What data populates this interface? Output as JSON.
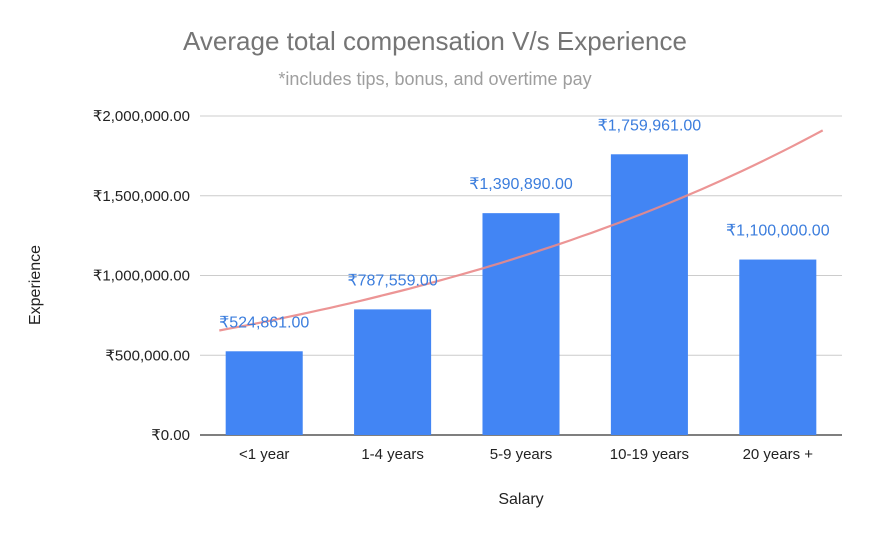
{
  "chart_data": {
    "type": "bar",
    "title": "Average total compensation V/s Experience",
    "subtitle": "*includes tips, bonus, and overtime pay",
    "xlabel": "Salary",
    "ylabel": "Experience",
    "categories": [
      "<1 year",
      "1-4 years",
      "5-9 years",
      "10-19 years",
      "20 years +"
    ],
    "values": [
      524861,
      787559,
      1390890,
      1759961,
      1100000
    ],
    "data_labels": [
      "₹524,861.00",
      "₹787,559.00",
      "₹1,390,890.00",
      "₹1,759,961.00",
      "₹1,100,000.00"
    ],
    "ylim": [
      0,
      2000000
    ],
    "yticks": [
      0,
      500000,
      1000000,
      1500000,
      2000000
    ],
    "ytick_labels": [
      "₹0.00",
      "₹500,000.00",
      "₹1,000,000.00",
      "₹1,500,000.00",
      "₹2,000,000.00"
    ],
    "trendline": {
      "type": "exponential",
      "x_start": -0.35,
      "y_start": 655000,
      "x_end": 4.35,
      "y_end": 1910000
    },
    "grid": true,
    "legend": "none",
    "colors": {
      "bar": "#4285f4",
      "trendline": "#ea8a8a",
      "grid": "#cccccc",
      "data_label": "#3b7ddd",
      "title": "#757575"
    }
  }
}
